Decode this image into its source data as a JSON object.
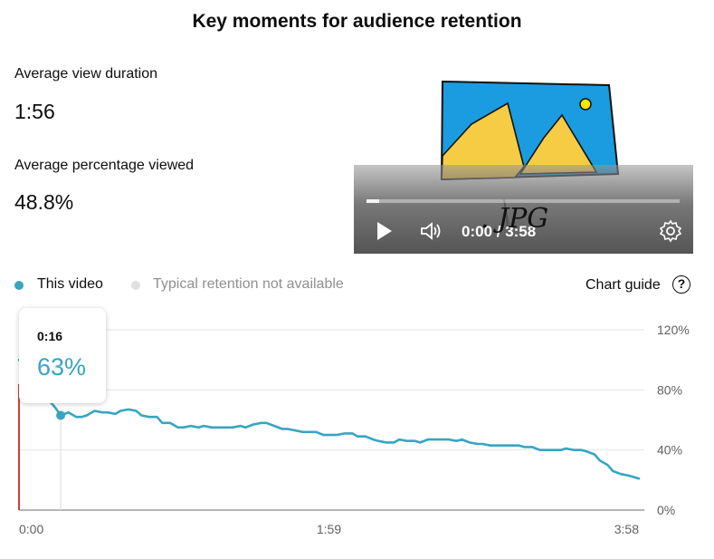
{
  "title": "Key moments for audience retention",
  "metrics": {
    "avg_view_duration_label": "Average view duration",
    "avg_view_duration_value": "1:56",
    "avg_percentage_label": "Average percentage viewed",
    "avg_percentage_value": "48.8%"
  },
  "player": {
    "time_display": "0:00 / 3:58",
    "buffered_fraction": 0.04,
    "overlay_text": ". JPG",
    "icons": [
      "play-icon",
      "volume-icon",
      "settings-icon"
    ]
  },
  "legend": {
    "this_video": "This video",
    "typical": "Typical retention not available",
    "chart_guide": "Chart guide",
    "help_glyph": "?"
  },
  "tooltip": {
    "time": "0:16",
    "value": "63%"
  },
  "colors": {
    "series": "#37a5c2",
    "start_marker": "#d23c3c",
    "grid": "#e5e5e5",
    "typical_dot": "#e0e0e0"
  },
  "chart_data": {
    "type": "line",
    "xlabel": "",
    "ylabel": "",
    "x_ticks": [
      "0:00",
      "1:59",
      "3:58"
    ],
    "y_ticks": [
      "0%",
      "40%",
      "80%",
      "120%"
    ],
    "ylim": [
      0,
      120
    ],
    "xlim": [
      0,
      238
    ],
    "grid": true,
    "legend_position": "top-left",
    "series": [
      {
        "name": "This video",
        "x": [
          0,
          3,
          7,
          11,
          14,
          16,
          19,
          22,
          24,
          26,
          29,
          32,
          34,
          37,
          39,
          42,
          45,
          47,
          50,
          53,
          55,
          58,
          61,
          63,
          66,
          69,
          71,
          74,
          77,
          79,
          82,
          85,
          87,
          90,
          93,
          95,
          98,
          101,
          103,
          106,
          109,
          111,
          114,
          117,
          119,
          122,
          125,
          128,
          130,
          133,
          136,
          138,
          141,
          144,
          146,
          149,
          152,
          154,
          157,
          160,
          162,
          165,
          168,
          170,
          173,
          176,
          178,
          181,
          184,
          186,
          189,
          192,
          194,
          197,
          200,
          202,
          205,
          208,
          210,
          213,
          216,
          218,
          221,
          223,
          226,
          228,
          231,
          234,
          236,
          238
        ],
        "y": [
          100,
          92,
          82,
          74,
          68,
          63,
          65,
          62,
          62,
          63,
          66,
          65,
          65,
          64,
          66,
          67,
          66,
          63,
          62,
          62,
          58,
          58,
          55,
          55,
          56,
          55,
          56,
          55,
          55,
          55,
          55,
          56,
          55,
          57,
          58,
          58,
          56,
          54,
          54,
          53,
          52,
          52,
          52,
          50,
          50,
          50,
          51,
          51,
          49,
          49,
          47,
          46,
          45,
          45,
          47,
          46,
          46,
          45,
          47,
          47,
          47,
          47,
          46,
          47,
          45,
          44,
          44,
          43,
          43,
          43,
          43,
          43,
          42,
          42,
          40,
          40,
          40,
          40,
          41,
          40,
          40,
          39,
          37,
          33,
          30,
          26,
          24,
          23,
          22,
          21
        ]
      }
    ]
  }
}
